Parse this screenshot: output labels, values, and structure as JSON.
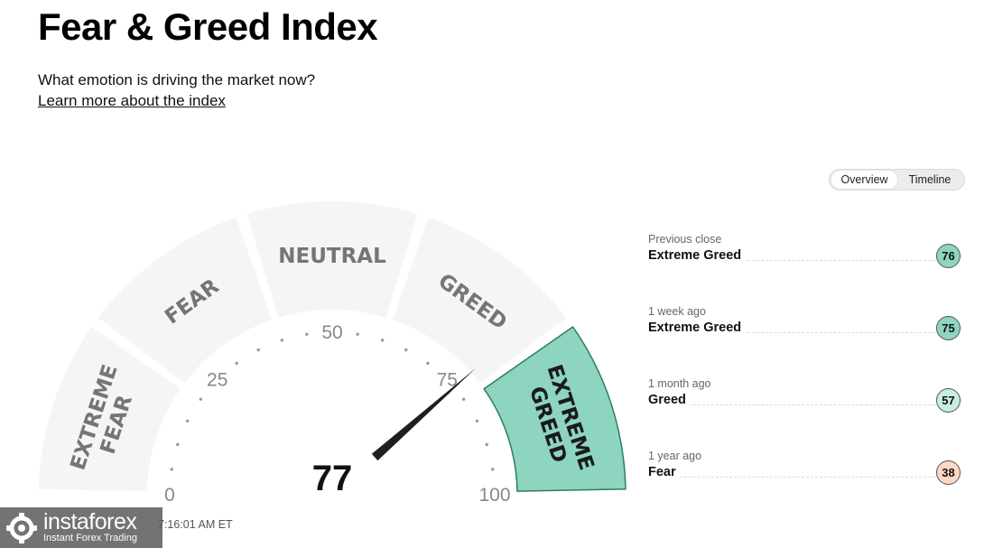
{
  "header": {
    "title": "Fear & Greed Index",
    "subtitle": "What emotion is driving the market now?",
    "learn_more": "Learn more about the index"
  },
  "view_toggle": {
    "options": [
      "Overview",
      "Timeline"
    ],
    "selected": "Overview"
  },
  "gauge": {
    "value": 77,
    "value_label": "77",
    "segments": [
      {
        "name": "EXTREME FEAR",
        "lines": [
          "EXTREME",
          "FEAR"
        ]
      },
      {
        "name": "FEAR",
        "lines": [
          "FEAR"
        ]
      },
      {
        "name": "NEUTRAL",
        "lines": [
          "NEUTRAL"
        ]
      },
      {
        "name": "GREED",
        "lines": [
          "GREED"
        ]
      },
      {
        "name": "EXTREME GREED",
        "lines": [
          "EXTREME",
          "GREED"
        ]
      }
    ],
    "active_segment": "EXTREME GREED",
    "ticks": [
      "0",
      "25",
      "50",
      "75",
      "100"
    ],
    "colors": {
      "segment_fill": "#f5f5f5",
      "active_fill": "#8dd4c1",
      "active_stroke": "#2f7d5c",
      "needle": "#1f1f1f"
    }
  },
  "history": [
    {
      "period": "Previous close",
      "label": "Extreme Greed",
      "value": "76",
      "color": "#8dd4c1"
    },
    {
      "period": "1 week ago",
      "label": "Extreme Greed",
      "value": "75",
      "color": "#8dd4c1"
    },
    {
      "period": "1 month ago",
      "label": "Greed",
      "value": "57",
      "color": "#c6eee3"
    },
    {
      "period": "1 year ago",
      "label": "Fear",
      "value": "38",
      "color": "#fbd8c4"
    }
  ],
  "timestamp": "7:16:01 AM ET",
  "watermark": {
    "brand": "instaforex",
    "tagline": "Instant Forex Trading"
  }
}
